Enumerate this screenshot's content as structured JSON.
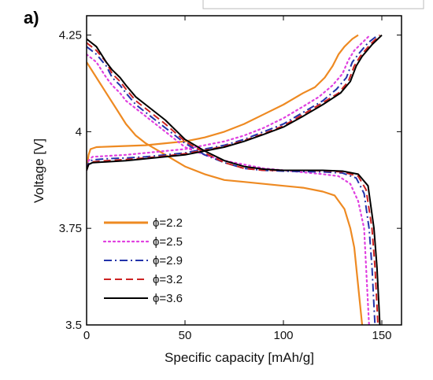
{
  "panel_label": "a)",
  "chart_data": {
    "type": "line",
    "xlabel": "Specific capacity [mAh/g]",
    "ylabel": "Voltage [V]",
    "xlim": [
      0,
      160
    ],
    "ylim": [
      3.5,
      4.3
    ],
    "xticks": [
      0,
      50,
      100,
      150
    ],
    "xtick_labels": [
      "0",
      "50",
      "100",
      "150"
    ],
    "yticks": [
      3.5,
      3.75,
      4.0,
      4.25
    ],
    "ytick_labels": [
      "3.5",
      "3.75",
      "4",
      "4.25"
    ],
    "grid": false,
    "legend_position": "bottom-left",
    "series": [
      {
        "name": "ϕ=2.2",
        "color": "#ee8a22",
        "style": "solid",
        "width": 2.2,
        "discharge": [
          [
            0,
            4.18
          ],
          [
            5,
            4.14
          ],
          [
            10,
            4.1
          ],
          [
            15,
            4.06
          ],
          [
            20,
            4.02
          ],
          [
            25,
            3.99
          ],
          [
            30,
            3.97
          ],
          [
            40,
            3.94
          ],
          [
            50,
            3.91
          ],
          [
            60,
            3.89
          ],
          [
            70,
            3.875
          ],
          [
            80,
            3.87
          ],
          [
            90,
            3.865
          ],
          [
            100,
            3.86
          ],
          [
            110,
            3.855
          ],
          [
            120,
            3.845
          ],
          [
            126,
            3.835
          ],
          [
            131,
            3.8
          ],
          [
            134,
            3.75
          ],
          [
            136,
            3.7
          ],
          [
            137,
            3.65
          ],
          [
            138,
            3.6
          ],
          [
            139,
            3.55
          ],
          [
            140,
            3.5
          ]
        ],
        "charge": [
          [
            0,
            3.9
          ],
          [
            1,
            3.94
          ],
          [
            2,
            3.955
          ],
          [
            5,
            3.96
          ],
          [
            15,
            3.962
          ],
          [
            30,
            3.965
          ],
          [
            40,
            3.97
          ],
          [
            50,
            3.975
          ],
          [
            60,
            3.985
          ],
          [
            70,
            4.0
          ],
          [
            80,
            4.02
          ],
          [
            90,
            4.045
          ],
          [
            100,
            4.07
          ],
          [
            110,
            4.1
          ],
          [
            116,
            4.115
          ],
          [
            121,
            4.14
          ],
          [
            125,
            4.17
          ],
          [
            128,
            4.2
          ],
          [
            131,
            4.22
          ],
          [
            135,
            4.24
          ],
          [
            138,
            4.25
          ]
        ]
      },
      {
        "name": "ϕ=2.5",
        "color": "#e040e0",
        "style": "dotted",
        "width": 2.2,
        "discharge": [
          [
            0,
            4.2
          ],
          [
            5,
            4.18
          ],
          [
            10,
            4.14
          ],
          [
            13,
            4.12
          ],
          [
            17,
            4.1
          ],
          [
            20,
            4.08
          ],
          [
            25,
            4.06
          ],
          [
            30,
            4.04
          ],
          [
            40,
            4.0
          ],
          [
            50,
            3.96
          ],
          [
            60,
            3.94
          ],
          [
            70,
            3.925
          ],
          [
            80,
            3.915
          ],
          [
            90,
            3.905
          ],
          [
            100,
            3.9
          ],
          [
            110,
            3.895
          ],
          [
            120,
            3.89
          ],
          [
            128,
            3.885
          ],
          [
            134,
            3.865
          ],
          [
            138,
            3.82
          ],
          [
            141,
            3.75
          ],
          [
            142,
            3.65
          ],
          [
            143,
            3.55
          ],
          [
            143.5,
            3.5
          ]
        ],
        "charge": [
          [
            0,
            3.9
          ],
          [
            1,
            3.925
          ],
          [
            3,
            3.935
          ],
          [
            10,
            3.937
          ],
          [
            20,
            3.94
          ],
          [
            30,
            3.945
          ],
          [
            40,
            3.95
          ],
          [
            50,
            3.955
          ],
          [
            60,
            3.965
          ],
          [
            70,
            3.975
          ],
          [
            80,
            3.99
          ],
          [
            90,
            4.01
          ],
          [
            100,
            4.035
          ],
          [
            110,
            4.065
          ],
          [
            118,
            4.09
          ],
          [
            125,
            4.12
          ],
          [
            130,
            4.15
          ],
          [
            133,
            4.185
          ],
          [
            136,
            4.21
          ],
          [
            140,
            4.23
          ],
          [
            144,
            4.25
          ]
        ]
      },
      {
        "name": "ϕ=2.9",
        "color": "#2233aa",
        "style": "dashdot",
        "width": 2,
        "discharge": [
          [
            0,
            4.22
          ],
          [
            5,
            4.2
          ],
          [
            10,
            4.17
          ],
          [
            13,
            4.14
          ],
          [
            17,
            4.12
          ],
          [
            20,
            4.1
          ],
          [
            25,
            4.07
          ],
          [
            30,
            4.05
          ],
          [
            40,
            4.01
          ],
          [
            50,
            3.97
          ],
          [
            60,
            3.94
          ],
          [
            70,
            3.92
          ],
          [
            80,
            3.905
          ],
          [
            90,
            3.9
          ],
          [
            100,
            3.898
          ],
          [
            110,
            3.897
          ],
          [
            120,
            3.896
          ],
          [
            130,
            3.893
          ],
          [
            137,
            3.88
          ],
          [
            141,
            3.84
          ],
          [
            143.5,
            3.75
          ],
          [
            145,
            3.65
          ],
          [
            146,
            3.55
          ],
          [
            146.5,
            3.5
          ]
        ],
        "charge": [
          [
            0,
            3.9
          ],
          [
            1,
            3.92
          ],
          [
            3,
            3.927
          ],
          [
            10,
            3.93
          ],
          [
            20,
            3.932
          ],
          [
            30,
            3.935
          ],
          [
            40,
            3.94
          ],
          [
            50,
            3.945
          ],
          [
            60,
            3.955
          ],
          [
            70,
            3.965
          ],
          [
            80,
            3.98
          ],
          [
            90,
            4.0
          ],
          [
            100,
            4.02
          ],
          [
            110,
            4.05
          ],
          [
            120,
            4.08
          ],
          [
            127,
            4.11
          ],
          [
            132,
            4.14
          ],
          [
            135,
            4.18
          ],
          [
            138,
            4.2
          ],
          [
            143,
            4.23
          ],
          [
            148,
            4.25
          ]
        ]
      },
      {
        "name": "ϕ=3.2",
        "color": "#cc2222",
        "style": "dashed",
        "width": 2,
        "discharge": [
          [
            0,
            4.23
          ],
          [
            5,
            4.21
          ],
          [
            10,
            4.18
          ],
          [
            13,
            4.15
          ],
          [
            17,
            4.13
          ],
          [
            20,
            4.11
          ],
          [
            25,
            4.08
          ],
          [
            30,
            4.06
          ],
          [
            40,
            4.02
          ],
          [
            50,
            3.975
          ],
          [
            60,
            3.945
          ],
          [
            70,
            3.92
          ],
          [
            80,
            3.905
          ],
          [
            90,
            3.9
          ],
          [
            100,
            3.9
          ],
          [
            110,
            3.9
          ],
          [
            120,
            3.899
          ],
          [
            130,
            3.896
          ],
          [
            138,
            3.885
          ],
          [
            142,
            3.85
          ],
          [
            145,
            3.75
          ],
          [
            146.5,
            3.65
          ],
          [
            147.5,
            3.55
          ],
          [
            148,
            3.5
          ]
        ],
        "charge": [
          [
            0,
            3.9
          ],
          [
            1,
            3.915
          ],
          [
            3,
            3.922
          ],
          [
            10,
            3.925
          ],
          [
            20,
            3.928
          ],
          [
            30,
            3.932
          ],
          [
            40,
            3.937
          ],
          [
            50,
            3.943
          ],
          [
            60,
            3.952
          ],
          [
            70,
            3.962
          ],
          [
            80,
            3.977
          ],
          [
            90,
            3.995
          ],
          [
            100,
            4.015
          ],
          [
            110,
            4.045
          ],
          [
            120,
            4.075
          ],
          [
            128,
            4.1
          ],
          [
            133,
            4.13
          ],
          [
            136,
            4.17
          ],
          [
            139,
            4.195
          ],
          [
            144,
            4.225
          ],
          [
            149,
            4.25
          ]
        ]
      },
      {
        "name": "ϕ=3.6",
        "color": "#000000",
        "style": "solid",
        "width": 2,
        "discharge": [
          [
            0,
            4.24
          ],
          [
            5,
            4.22
          ],
          [
            10,
            4.18
          ],
          [
            13,
            4.16
          ],
          [
            17,
            4.14
          ],
          [
            20,
            4.12
          ],
          [
            25,
            4.09
          ],
          [
            30,
            4.07
          ],
          [
            40,
            4.03
          ],
          [
            50,
            3.98
          ],
          [
            60,
            3.95
          ],
          [
            70,
            3.925
          ],
          [
            80,
            3.91
          ],
          [
            90,
            3.903
          ],
          [
            100,
            3.9
          ],
          [
            110,
            3.9
          ],
          [
            120,
            3.9
          ],
          [
            130,
            3.898
          ],
          [
            138,
            3.89
          ],
          [
            143,
            3.86
          ],
          [
            146,
            3.75
          ],
          [
            147.5,
            3.65
          ],
          [
            148.5,
            3.55
          ],
          [
            149,
            3.5
          ]
        ],
        "charge": [
          [
            0,
            3.9
          ],
          [
            1,
            3.915
          ],
          [
            3,
            3.92
          ],
          [
            10,
            3.922
          ],
          [
            20,
            3.925
          ],
          [
            30,
            3.93
          ],
          [
            40,
            3.935
          ],
          [
            50,
            3.94
          ],
          [
            60,
            3.95
          ],
          [
            70,
            3.96
          ],
          [
            80,
            3.975
          ],
          [
            90,
            3.993
          ],
          [
            100,
            4.012
          ],
          [
            110,
            4.04
          ],
          [
            120,
            4.07
          ],
          [
            129,
            4.1
          ],
          [
            134,
            4.13
          ],
          [
            137,
            4.17
          ],
          [
            140,
            4.195
          ],
          [
            145,
            4.225
          ],
          [
            150,
            4.25
          ]
        ]
      }
    ]
  }
}
